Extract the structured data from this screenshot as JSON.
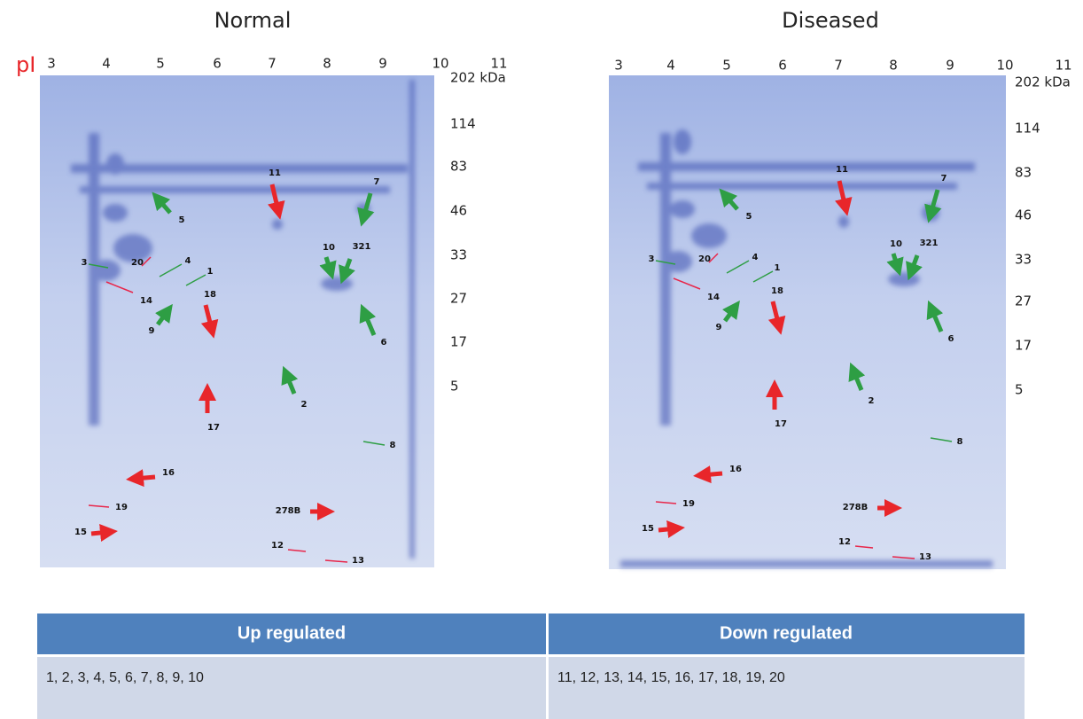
{
  "pi_label": "pI",
  "panels": [
    {
      "title": "Normal",
      "pi_ticks": [
        3,
        4,
        5,
        6,
        7,
        8,
        9,
        10,
        11
      ],
      "mw_ticks": [
        "202 kDa",
        "114",
        "83",
        "46",
        "33",
        "27",
        "17",
        "5"
      ],
      "spots": [
        "11",
        "7",
        "5",
        "10",
        "321",
        "3",
        "20",
        "4",
        "1",
        "14",
        "18",
        "9",
        "6",
        "2",
        "17",
        "8",
        "16",
        "19",
        "278B",
        "15",
        "12",
        "13"
      ]
    },
    {
      "title": "Diseased",
      "pi_ticks": [
        3,
        4,
        5,
        6,
        7,
        8,
        9,
        10,
        11
      ],
      "mw_ticks": [
        "202 kDa",
        "114",
        "83",
        "46",
        "33",
        "27",
        "17",
        "5"
      ],
      "spots": [
        "11",
        "7",
        "5",
        "10",
        "321",
        "3",
        "20",
        "4",
        "1",
        "14",
        "18",
        "9",
        "6",
        "2",
        "17",
        "8",
        "16",
        "19",
        "278B",
        "15",
        "12",
        "13"
      ]
    }
  ],
  "table": {
    "header": [
      "Up regulated",
      "Down regulated"
    ],
    "rows": [
      [
        "1, 2, 3, 4, 5, 6, 7, 8, 9, 10",
        "11, 12, 13, 14, 15, 16, 17, 18, 19, 20"
      ]
    ]
  }
}
